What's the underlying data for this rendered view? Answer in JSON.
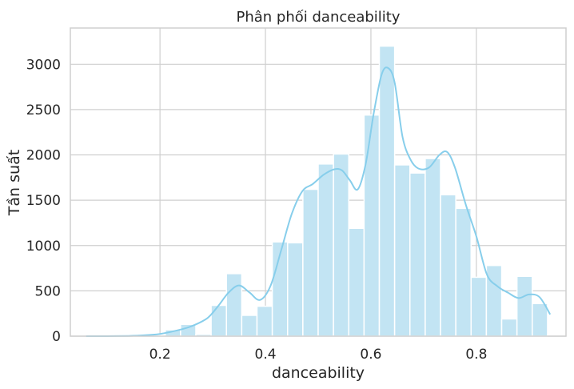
{
  "chart_data": {
    "type": "bar",
    "title": "Phân phối danceability",
    "xlabel": "danceability",
    "ylabel": "Tần suất",
    "xlim": [
      0.03,
      0.97
    ],
    "ylim": [
      0,
      3400
    ],
    "x_ticks": [
      0.2,
      0.4,
      0.6,
      0.8
    ],
    "x_tick_labels": [
      "0.2",
      "0.4",
      "0.6",
      "0.8"
    ],
    "y_ticks": [
      0,
      500,
      1000,
      1500,
      2000,
      2500,
      3000
    ],
    "y_tick_labels": [
      "0",
      "500",
      "1000",
      "1500",
      "2000",
      "2500",
      "3000"
    ],
    "grid": true,
    "colors": {
      "bar": "#c2e4f3",
      "kde": "#87ceeb",
      "grid": "#cfcfcf"
    },
    "bins": [
      {
        "x0": 0.15,
        "x1": 0.18,
        "value": 5
      },
      {
        "x0": 0.18,
        "x1": 0.21,
        "value": 10
      },
      {
        "x0": 0.21,
        "x1": 0.239,
        "value": 70
      },
      {
        "x0": 0.239,
        "x1": 0.268,
        "value": 130
      },
      {
        "x0": 0.268,
        "x1": 0.297,
        "value": 20
      },
      {
        "x0": 0.297,
        "x1": 0.326,
        "value": 340
      },
      {
        "x0": 0.326,
        "x1": 0.355,
        "value": 690
      },
      {
        "x0": 0.355,
        "x1": 0.384,
        "value": 230
      },
      {
        "x0": 0.384,
        "x1": 0.413,
        "value": 330
      },
      {
        "x0": 0.413,
        "x1": 0.442,
        "value": 1040
      },
      {
        "x0": 0.442,
        "x1": 0.471,
        "value": 1030
      },
      {
        "x0": 0.471,
        "x1": 0.5,
        "value": 1620
      },
      {
        "x0": 0.5,
        "x1": 0.529,
        "value": 1900
      },
      {
        "x0": 0.529,
        "x1": 0.558,
        "value": 2010
      },
      {
        "x0": 0.558,
        "x1": 0.587,
        "value": 1190
      },
      {
        "x0": 0.587,
        "x1": 0.616,
        "value": 2440
      },
      {
        "x0": 0.616,
        "x1": 0.645,
        "value": 3200
      },
      {
        "x0": 0.645,
        "x1": 0.674,
        "value": 1890
      },
      {
        "x0": 0.674,
        "x1": 0.703,
        "value": 1800
      },
      {
        "x0": 0.703,
        "x1": 0.732,
        "value": 1960
      },
      {
        "x0": 0.732,
        "x1": 0.761,
        "value": 1560
      },
      {
        "x0": 0.761,
        "x1": 0.79,
        "value": 1410
      },
      {
        "x0": 0.79,
        "x1": 0.819,
        "value": 650
      },
      {
        "x0": 0.819,
        "x1": 0.848,
        "value": 780
      },
      {
        "x0": 0.848,
        "x1": 0.877,
        "value": 190
      },
      {
        "x0": 0.877,
        "x1": 0.906,
        "value": 660
      },
      {
        "x0": 0.906,
        "x1": 0.935,
        "value": 360
      }
    ],
    "kde": {
      "x": [
        0.06,
        0.1,
        0.14,
        0.17,
        0.2,
        0.23,
        0.26,
        0.29,
        0.31,
        0.33,
        0.35,
        0.37,
        0.39,
        0.41,
        0.43,
        0.45,
        0.47,
        0.49,
        0.51,
        0.53,
        0.545,
        0.56,
        0.575,
        0.59,
        0.605,
        0.62,
        0.632,
        0.645,
        0.66,
        0.675,
        0.69,
        0.71,
        0.73,
        0.745,
        0.76,
        0.78,
        0.8,
        0.82,
        0.84,
        0.86,
        0.88,
        0.9,
        0.92,
        0.94
      ],
      "y": [
        0,
        0,
        3,
        10,
        25,
        60,
        110,
        200,
        330,
        480,
        560,
        480,
        400,
        560,
        950,
        1350,
        1600,
        1680,
        1780,
        1840,
        1830,
        1720,
        1620,
        1900,
        2450,
        2880,
        2960,
        2800,
        2200,
        1950,
        1850,
        1860,
        2000,
        2030,
        1850,
        1450,
        1100,
        680,
        550,
        480,
        420,
        460,
        430,
        240
      ]
    }
  }
}
